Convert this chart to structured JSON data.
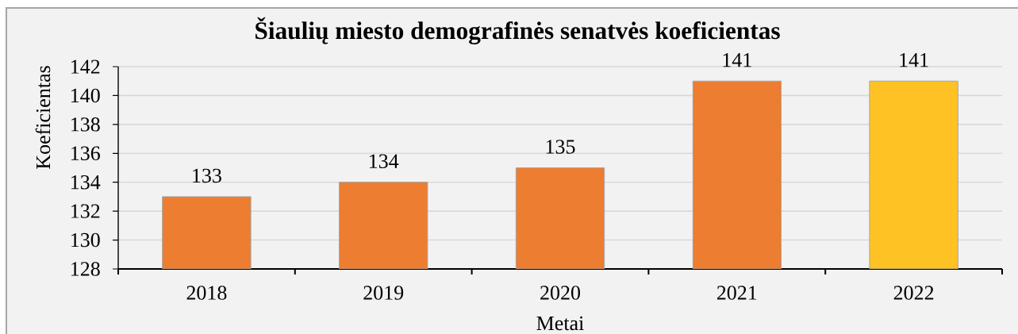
{
  "chart_data": {
    "type": "bar",
    "title": "Šiaulių miesto demografinės senatvės koeficientas",
    "xlabel": "Metai",
    "ylabel": "Koeficientas",
    "categories": [
      "2018",
      "2019",
      "2020",
      "2021",
      "2022"
    ],
    "values": [
      133,
      134,
      135,
      141,
      141
    ],
    "colors": [
      "#ed7d31",
      "#ed7d31",
      "#ed7d31",
      "#ed7d31",
      "#ffc224"
    ],
    "ylim": [
      128,
      142
    ],
    "yticks": [
      128,
      130,
      132,
      134,
      136,
      138,
      140,
      142
    ],
    "grid": "y",
    "data_labels": true
  }
}
